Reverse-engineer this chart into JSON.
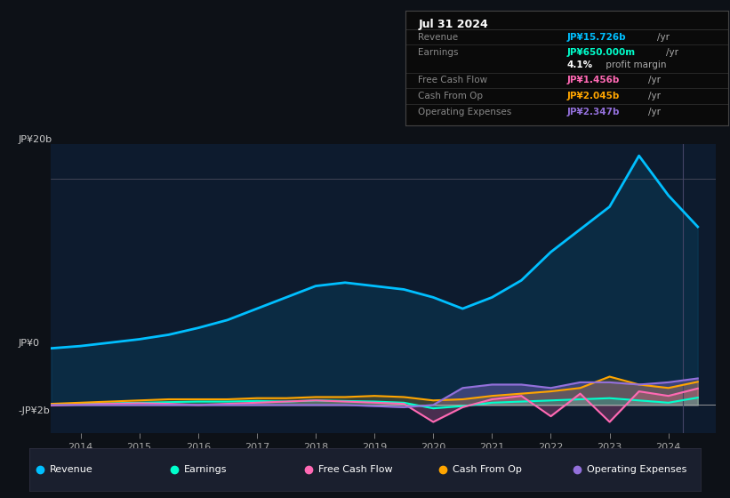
{
  "bg_color": "#0d1117",
  "plot_bg_color": "#0d1b2e",
  "panel_bg_color": "#0a0a0a",
  "title_box": {
    "date": "Jul 31 2024",
    "rows": [
      {
        "label": "Revenue",
        "value": "JP¥15.726b",
        "unit": "/yr",
        "value_color": "#00bfff",
        "label_color": "#888888"
      },
      {
        "label": "Earnings",
        "value": "JP¥650.000m",
        "unit": "/yr",
        "value_color": "#00ffcc",
        "label_color": "#888888"
      },
      {
        "label": "",
        "value": "4.1%",
        "unit": " profit margin",
        "value_color": "#ffffff",
        "label_color": "#ffffff"
      },
      {
        "label": "Free Cash Flow",
        "value": "JP¥1.456b",
        "unit": "/yr",
        "value_color": "#ff69b4",
        "label_color": "#888888"
      },
      {
        "label": "Cash From Op",
        "value": "JP¥2.045b",
        "unit": "/yr",
        "value_color": "#ffa500",
        "label_color": "#888888"
      },
      {
        "label": "Operating Expenses",
        "value": "JP¥2.347b",
        "unit": "/yr",
        "value_color": "#9370db",
        "label_color": "#888888"
      }
    ]
  },
  "years": [
    2013.5,
    2014.0,
    2014.5,
    2015.0,
    2015.5,
    2016.0,
    2016.5,
    2017.0,
    2017.5,
    2018.0,
    2018.5,
    2019.0,
    2019.5,
    2020.0,
    2020.5,
    2021.0,
    2021.5,
    2022.0,
    2022.5,
    2023.0,
    2023.5,
    2024.0,
    2024.5
  ],
  "revenue": [
    5.0,
    5.2,
    5.5,
    5.8,
    6.2,
    6.8,
    7.5,
    8.5,
    9.5,
    10.5,
    10.8,
    10.5,
    10.2,
    9.5,
    8.5,
    9.5,
    11.0,
    13.5,
    15.5,
    17.5,
    22.0,
    18.5,
    15.726
  ],
  "earnings": [
    0.05,
    0.1,
    0.15,
    0.2,
    0.25,
    0.3,
    0.3,
    0.35,
    0.3,
    0.4,
    0.35,
    0.3,
    0.2,
    -0.3,
    -0.1,
    0.2,
    0.3,
    0.4,
    0.5,
    0.6,
    0.4,
    0.2,
    0.65
  ],
  "free_cash_flow": [
    -0.05,
    0.05,
    0.1,
    0.15,
    0.1,
    0.0,
    0.1,
    0.2,
    0.3,
    0.4,
    0.3,
    0.2,
    0.1,
    -1.5,
    -0.2,
    0.5,
    0.8,
    -1.0,
    1.0,
    -1.5,
    1.2,
    0.8,
    1.456
  ],
  "cash_from_op": [
    0.1,
    0.2,
    0.3,
    0.4,
    0.5,
    0.5,
    0.5,
    0.6,
    0.6,
    0.7,
    0.7,
    0.8,
    0.7,
    0.4,
    0.5,
    0.8,
    1.0,
    1.2,
    1.5,
    2.5,
    1.8,
    1.5,
    2.045
  ],
  "operating_expenses": [
    0.0,
    0.0,
    0.0,
    0.0,
    0.0,
    0.0,
    0.0,
    0.0,
    0.0,
    0.0,
    0.0,
    -0.1,
    -0.2,
    0.0,
    1.5,
    1.8,
    1.8,
    1.5,
    2.0,
    2.0,
    1.8,
    2.0,
    2.347
  ],
  "revenue_color": "#00bfff",
  "earnings_color": "#00ffcc",
  "fcf_color": "#ff69b4",
  "cashop_color": "#ffa500",
  "opex_color": "#9370db",
  "ylim": [
    -2.5,
    23
  ],
  "ytick_labels": [
    "JP¥0",
    "JP¥20b"
  ],
  "ytick_extra_label": "-JP¥2b",
  "xmin": 2013.5,
  "xmax": 2024.8,
  "xtick_vals": [
    2014,
    2015,
    2016,
    2017,
    2018,
    2019,
    2020,
    2021,
    2022,
    2023,
    2024
  ],
  "legend_items": [
    {
      "label": "Revenue",
      "color": "#00bfff"
    },
    {
      "label": "Earnings",
      "color": "#00ffcc"
    },
    {
      "label": "Free Cash Flow",
      "color": "#ff69b4"
    },
    {
      "label": "Cash From Op",
      "color": "#ffa500"
    },
    {
      "label": "Operating Expenses",
      "color": "#9370db"
    }
  ]
}
